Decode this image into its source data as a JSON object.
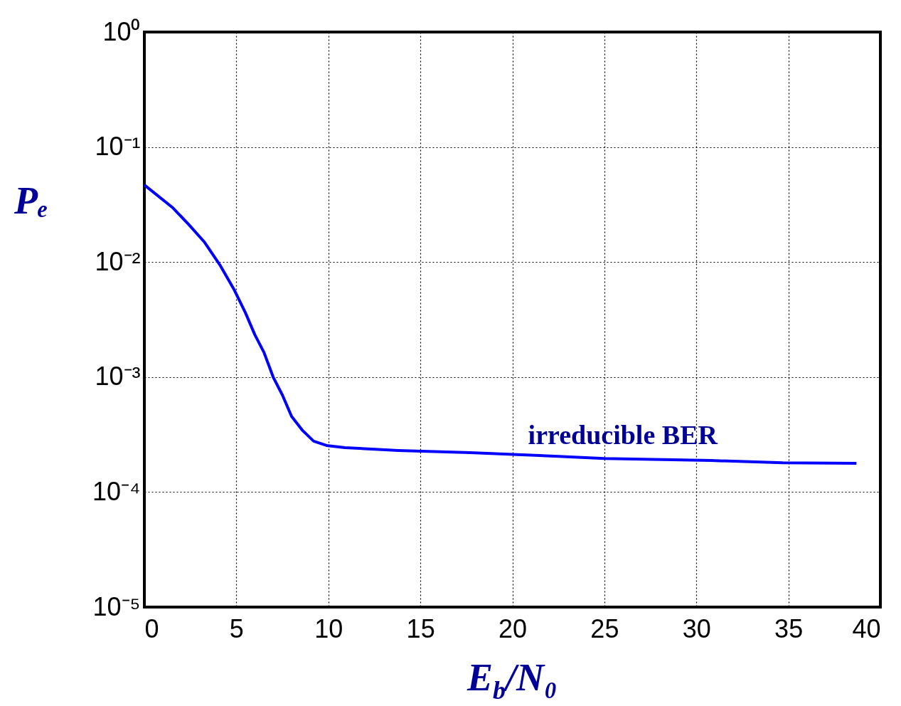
{
  "chart_data": {
    "type": "line",
    "xlabel": "E$_{b}$/N₀",
    "ylabel": "Pₑ",
    "x": [
      0,
      1.55,
      2.4,
      3.25,
      4.1,
      4.9,
      5.5,
      6.0,
      6.5,
      7.0,
      7.5,
      8.0,
      8.6,
      9.2,
      9.9,
      10.9,
      13.8,
      17.7,
      22.3,
      25,
      30.8,
      34.7,
      38.7
    ],
    "series": [
      {
        "color": "#0000ff",
        "values": [
          0.0468,
          0.0296,
          0.0213,
          0.015,
          0.00946,
          0.00567,
          0.0036,
          0.00234,
          0.00164,
          0.001,
          0.000698,
          0.000455,
          0.000343,
          0.000277,
          0.000254,
          0.000243,
          0.00023,
          0.00022,
          0.000205,
          0.000196,
          0.000188,
          0.00018,
          0.000178
        ]
      }
    ],
    "xlim": [
      0,
      40
    ],
    "xticks": [
      0,
      5,
      10,
      15,
      20,
      25,
      30,
      35,
      40
    ],
    "ylim": [
      1e-05,
      1
    ],
    "yticks": [
      {
        "value": 1,
        "label": "10⁰"
      },
      {
        "value": 0.1,
        "label": "10⁻¹"
      },
      {
        "value": 0.01,
        "label": "10⁻²"
      },
      {
        "value": 0.001,
        "label": "10⁻³"
      },
      {
        "value": 0.0001,
        "label": "10⁻⁴"
      },
      {
        "value": 1e-05,
        "label": "10⁻⁵"
      }
    ],
    "log": true,
    "grid": true,
    "marker": "none",
    "line_style": "solid",
    "annotations": [
      {
        "text": "irreducible BER",
        "x": 26,
        "y": 0.000196
      }
    ]
  }
}
